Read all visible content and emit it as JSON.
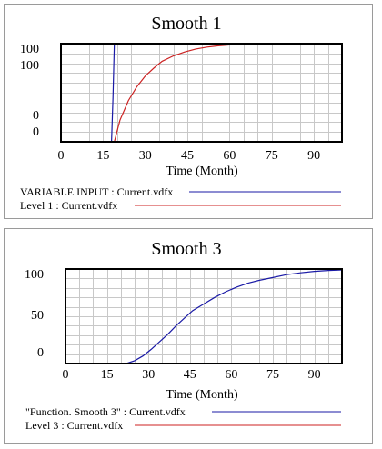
{
  "chart_data": [
    {
      "type": "line",
      "title": "Smooth 1",
      "xlabel": "Time (Month)",
      "ylabel": "",
      "xlim": [
        0,
        100
      ],
      "ylim": [
        0,
        100
      ],
      "x_ticks": [
        "0",
        "15",
        "30",
        "45",
        "60",
        "75",
        "90"
      ],
      "y_tick_labels_shown": [
        "100",
        "100",
        "0",
        "0"
      ],
      "grid": true,
      "legend_position": "bottom",
      "series": [
        {
          "name": "VARIABLE INPUT : Current.vdfx",
          "color": "#1a1aa6",
          "x": [
            0,
            18,
            18.5,
            19,
            100
          ],
          "y": [
            0,
            0,
            45,
            100,
            100
          ]
        },
        {
          "name": "Level 1 : Current.vdfx",
          "color": "#cc2222",
          "x": [
            0,
            19,
            21,
            24,
            27,
            30,
            33,
            36,
            40,
            44,
            48,
            52,
            56,
            60,
            65,
            70,
            80,
            90,
            100
          ],
          "y": [
            0,
            0,
            22,
            42,
            56,
            67,
            75,
            82,
            87.5,
            91.5,
            94.5,
            96.5,
            97.8,
            98.7,
            99.3,
            99.7,
            100,
            100,
            100
          ]
        }
      ]
    },
    {
      "type": "line",
      "title": "Smooth 3",
      "xlabel": "Time (Month)",
      "ylabel": "",
      "xlim": [
        0,
        100
      ],
      "ylim": [
        0,
        100
      ],
      "x_ticks": [
        "0",
        "15",
        "30",
        "45",
        "60",
        "75",
        "90"
      ],
      "y_tick_labels_shown": [
        "100",
        "50",
        "0"
      ],
      "grid": true,
      "legend_position": "bottom",
      "series": [
        {
          "name": "\"Function. Smooth 3\" : Current.vdfx",
          "color": "#1a1aa6",
          "x": [
            0,
            22,
            25,
            28,
            31,
            34,
            37,
            40,
            43,
            46,
            50,
            54,
            58,
            62,
            66,
            70,
            75,
            80,
            85,
            90,
            95,
            100
          ],
          "y": [
            0,
            0,
            3,
            8,
            15,
            23,
            31,
            40,
            48,
            56,
            63,
            70,
            76,
            81,
            85,
            88,
            91,
            94,
            96,
            97.5,
            98.5,
            99
          ]
        },
        {
          "name": "Level 3 : Current.vdfx",
          "color": "#cc2222",
          "x": [],
          "y": []
        }
      ]
    }
  ]
}
